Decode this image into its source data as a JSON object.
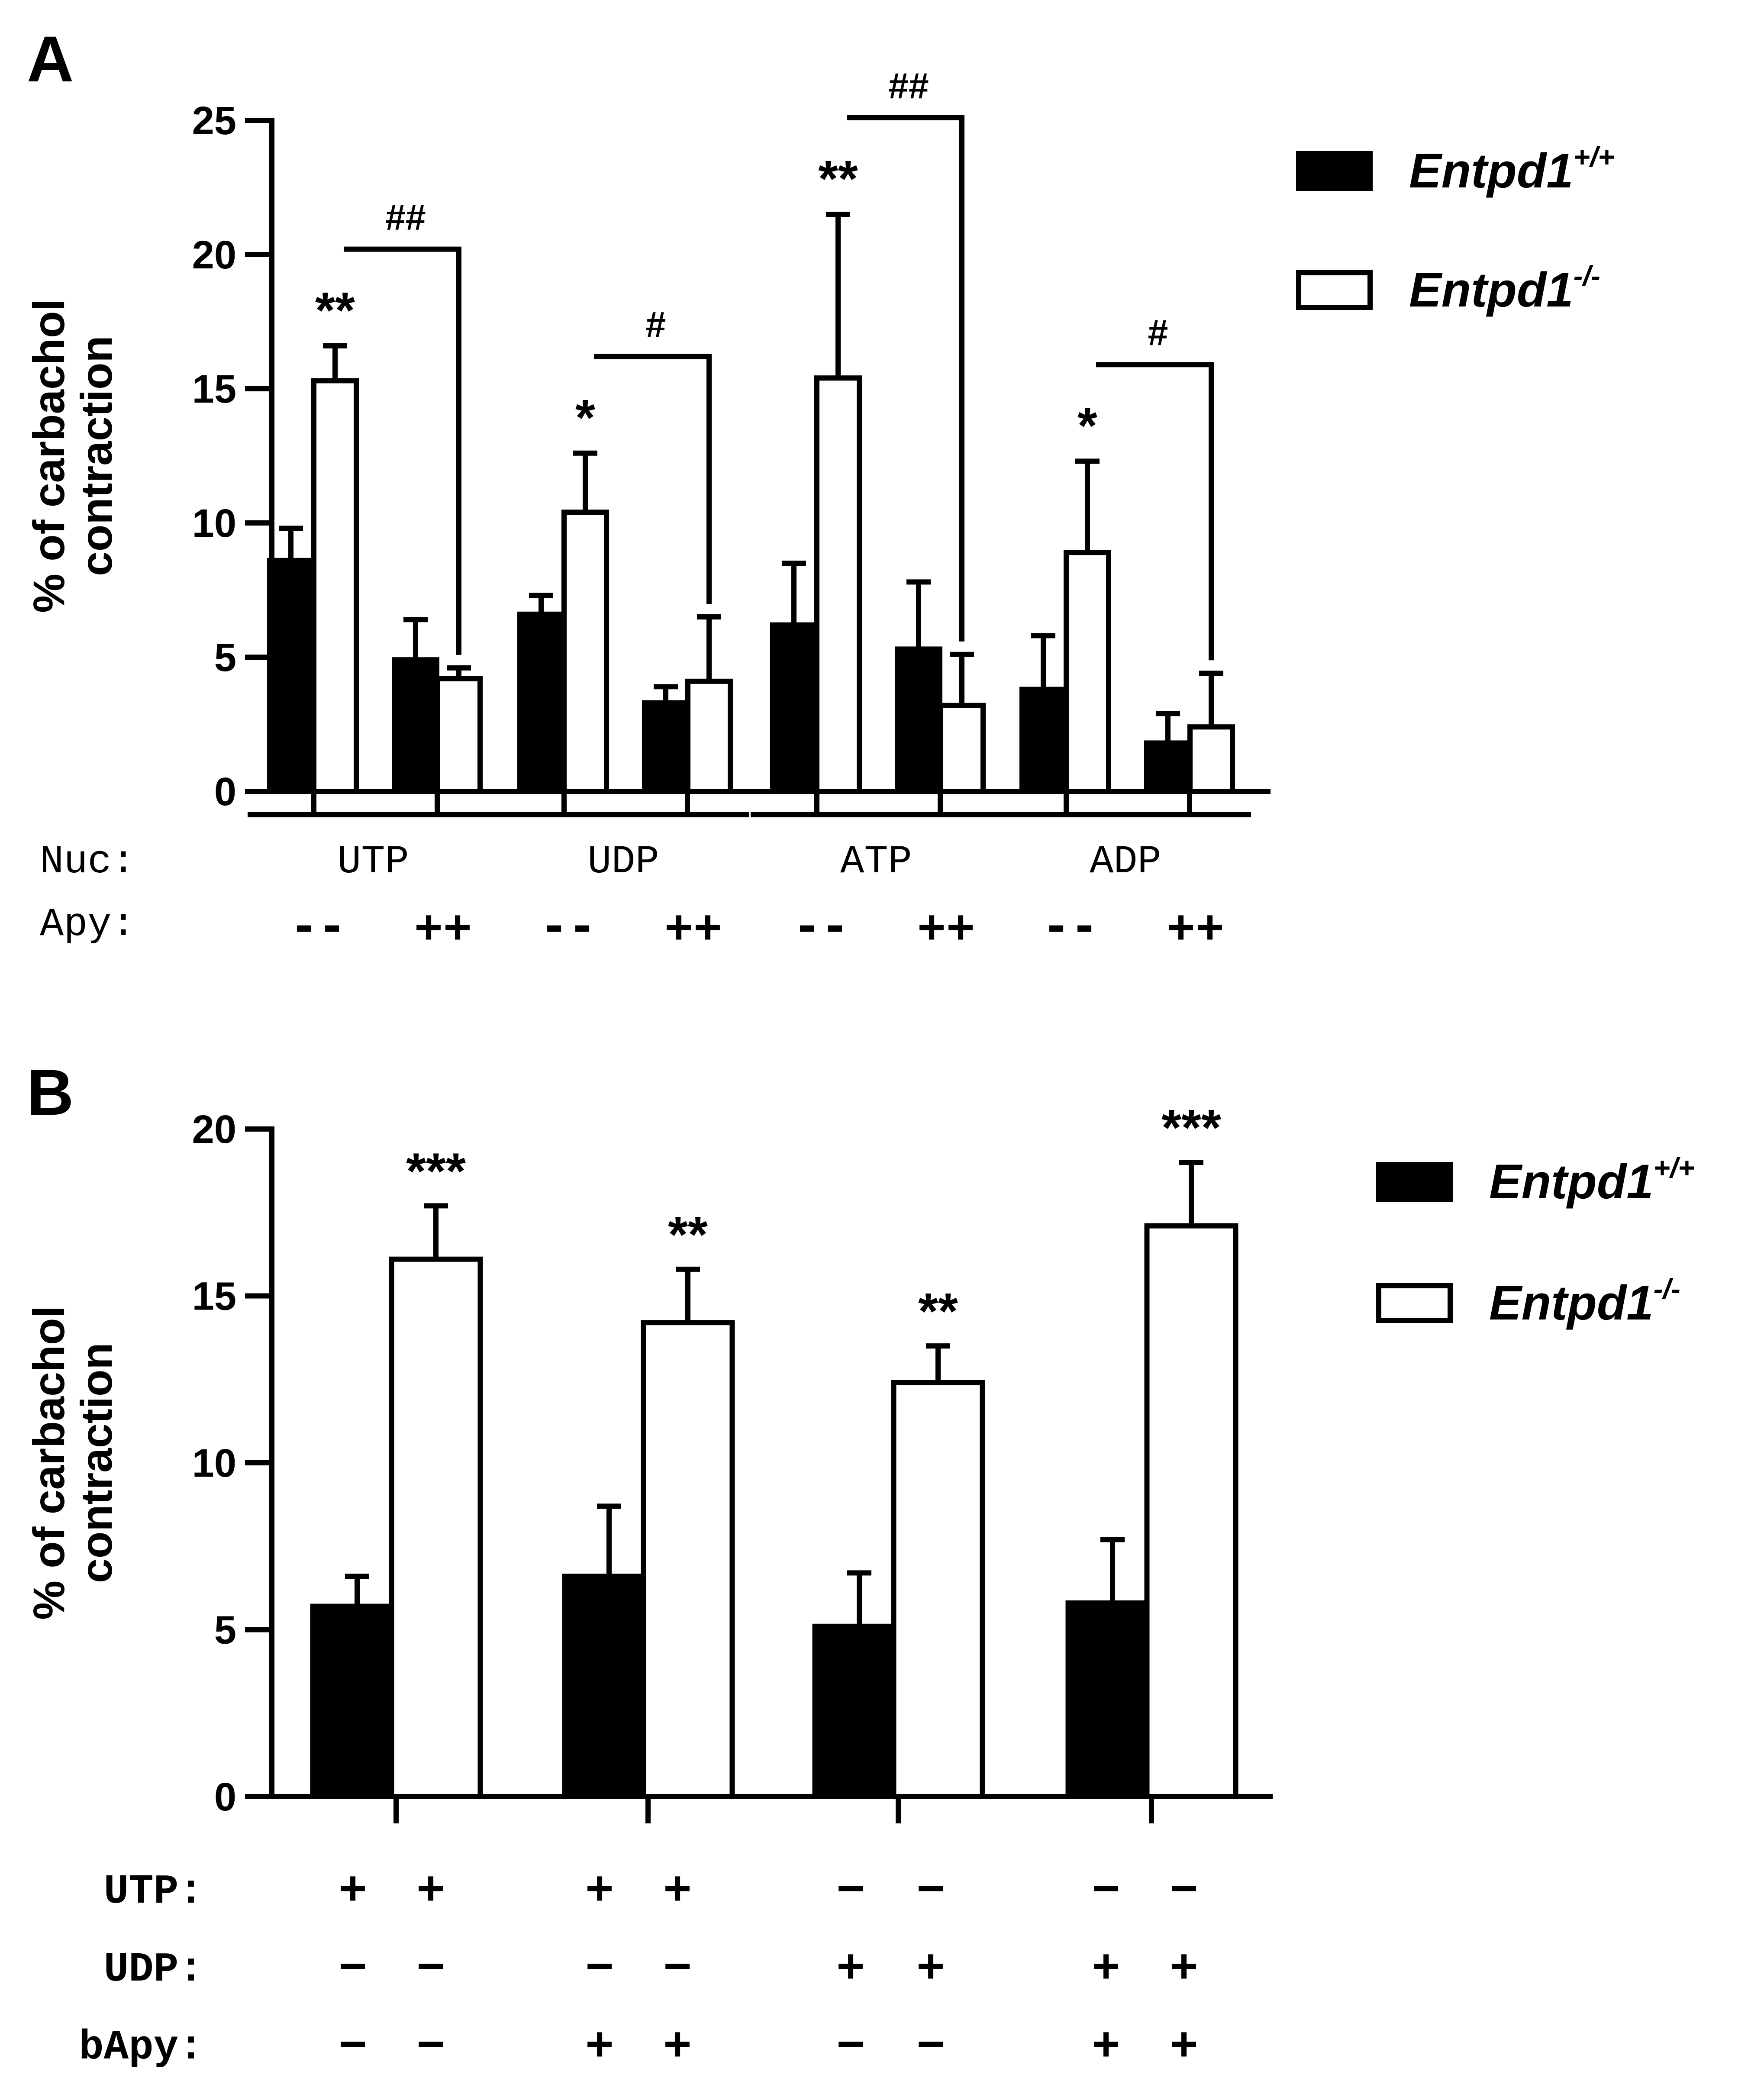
{
  "chart_data": [
    {
      "panel": "A",
      "type": "bar",
      "ylabel_line1": "% of carbachol",
      "ylabel_line2": "contraction",
      "ylim": [
        0,
        25
      ],
      "yticks": [
        "0",
        "5",
        "10",
        "15",
        "20",
        "25"
      ],
      "groups": [
        "UTP",
        "UDP",
        "ATP",
        "ADP"
      ],
      "row_labels": {
        "nuc": "Nuc:",
        "apy": "Apy:"
      },
      "apy_signs": [
        "-",
        "-",
        "+",
        "+"
      ],
      "legend": {
        "wt_base": "Entpd1",
        "wt_sup": "+/+",
        "ko_base": "Entpd1",
        "ko_sup": "-/-"
      },
      "series": [
        {
          "name": "Entpd1+/+ no Apy",
          "fill": "#000000",
          "values": [
            8.6,
            6.6,
            6.2,
            3.8
          ],
          "errors": [
            1.2,
            0.7,
            2.3,
            2.0
          ]
        },
        {
          "name": "Entpd1-/- no Apy",
          "fill": "#ffffff",
          "values": [
            15.3,
            10.4,
            15.4,
            8.9
          ],
          "errors": [
            1.3,
            2.2,
            6.1,
            3.4
          ]
        },
        {
          "name": "Entpd1+/+ Apy",
          "fill": "#000000",
          "values": [
            4.9,
            3.3,
            5.3,
            1.8
          ],
          "errors": [
            1.5,
            0.6,
            2.5,
            1.1
          ]
        },
        {
          "name": "Entpd1-/- Apy",
          "fill": "#ffffff",
          "values": [
            4.2,
            4.1,
            3.2,
            2.4
          ],
          "errors": [
            0.4,
            2.4,
            1.9,
            2.0
          ]
        }
      ],
      "stars": [
        "**",
        "*",
        "**",
        "*"
      ],
      "hashes": [
        "##",
        "#",
        "##",
        "#"
      ]
    },
    {
      "panel": "B",
      "type": "bar",
      "ylabel_line1": "% of carbachol",
      "ylabel_line2": "contraction",
      "ylim": [
        0,
        20
      ],
      "yticks": [
        "0",
        "5",
        "10",
        "15",
        "20"
      ],
      "legend": {
        "wt_base": "Entpd1",
        "wt_sup": "+/+",
        "ko_base": "Entpd1",
        "ko_sup": "-/-"
      },
      "series": [
        {
          "name": "Entpd1+/+",
          "fill": "#000000",
          "values": [
            5.7,
            6.6,
            5.1,
            5.8
          ],
          "errors": [
            0.9,
            2.1,
            1.6,
            1.9
          ]
        },
        {
          "name": "Entpd1-/-",
          "fill": "#ffffff",
          "values": [
            16.1,
            14.2,
            12.4,
            17.1
          ],
          "errors": [
            1.6,
            1.6,
            1.1,
            1.9
          ]
        }
      ],
      "stars": [
        "***",
        "**",
        "**",
        "***"
      ],
      "conditions": [
        {
          "label": "UTP:",
          "signs": [
            "+",
            "+",
            "−",
            "−"
          ]
        },
        {
          "label": "UDP:",
          "signs": [
            "−",
            "−",
            "+",
            "+"
          ]
        },
        {
          "label": "bApy:",
          "signs": [
            "−",
            "+",
            "−",
            "+"
          ]
        }
      ]
    }
  ]
}
